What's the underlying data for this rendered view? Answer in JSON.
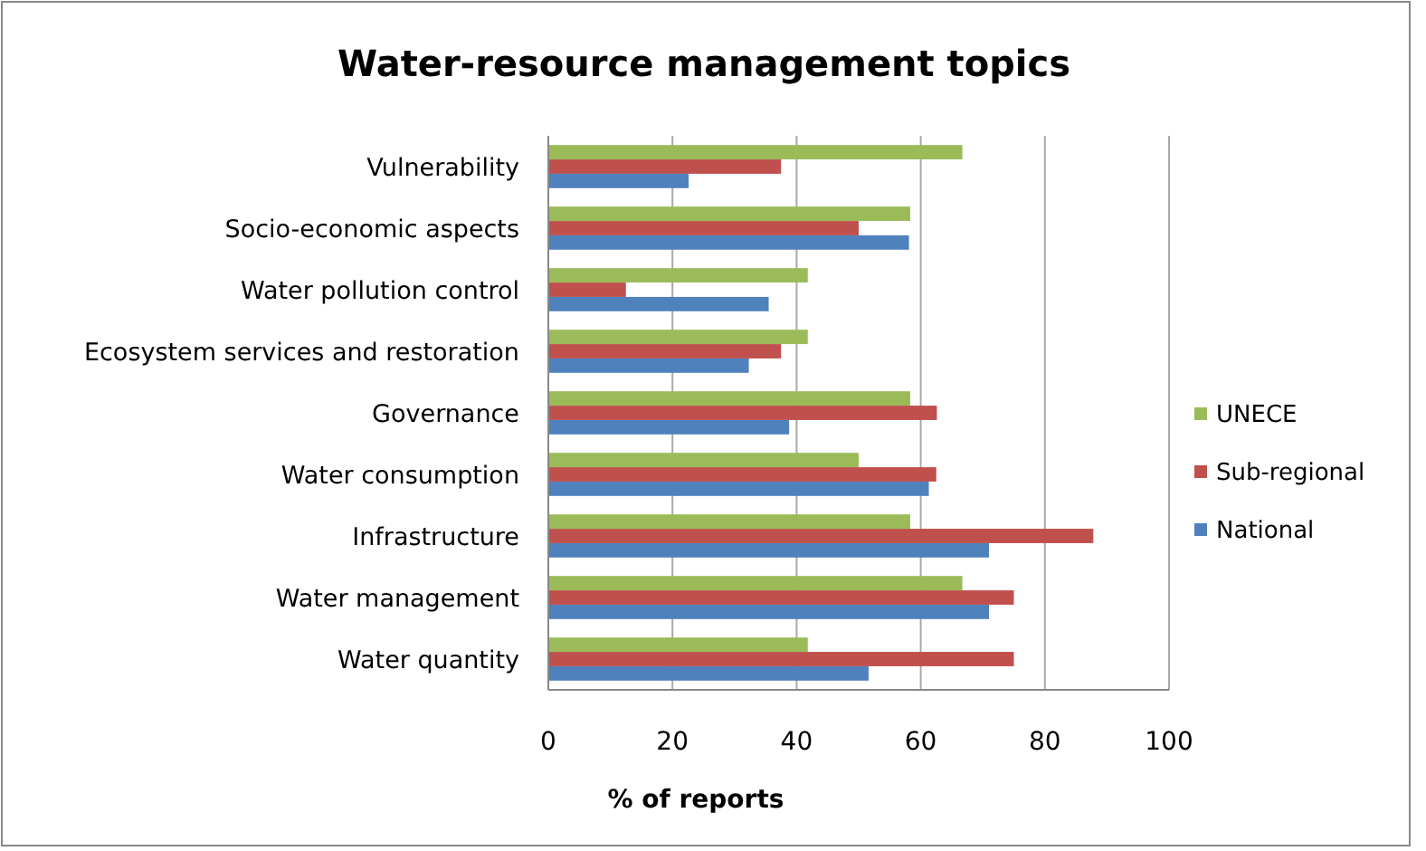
{
  "chart_data": {
    "type": "bar",
    "orientation": "horizontal",
    "title": "Water-resource management topics",
    "xlabel": "% of reports",
    "categories": [
      "Vulnerability",
      "Socio-economic aspects",
      "Water pollution control",
      "Ecosystem services and restoration",
      "Governance ",
      "Water consumption",
      "Infrastructure",
      "Water management",
      "Water quantity"
    ],
    "series": [
      {
        "name": "National",
        "color": "#4f81bd",
        "values": [
          22.6,
          58.1,
          35.5,
          32.3,
          38.8,
          61.3,
          71,
          71,
          51.6
        ]
      },
      {
        "name": "Sub-regional",
        "color": "#c0504d",
        "values": [
          37.5,
          50,
          12.5,
          37.5,
          62.6,
          62.5,
          87.8,
          75,
          75
        ]
      },
      {
        "name": "UNECE",
        "color": "#9bbb59",
        "values": [
          66.7,
          58.3,
          41.8,
          41.8,
          58.3,
          50,
          58.3,
          66.7,
          41.8
        ]
      }
    ],
    "xlim": [
      0,
      100
    ],
    "xticks": [
      0,
      20,
      40,
      60,
      80,
      100
    ],
    "grid": "x",
    "legend": "right"
  }
}
